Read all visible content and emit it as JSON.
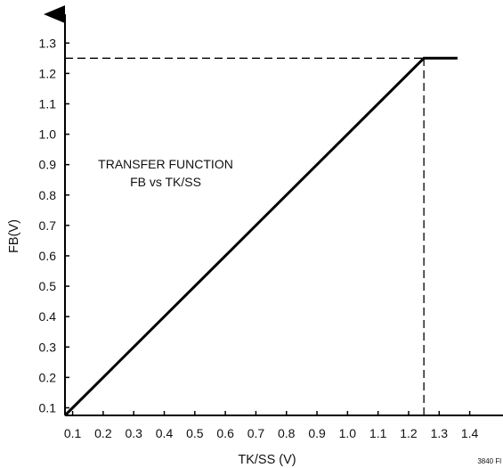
{
  "chart_data": {
    "type": "line",
    "title": "",
    "annotation": [
      "TRANSFER FUNCTION",
      "FB vs TK/SS"
    ],
    "xlabel": "TK/SS (V)",
    "ylabel": "FB(V)",
    "xlim": [
      0.075,
      1.45
    ],
    "ylim": [
      0.075,
      1.35
    ],
    "x_ticks": [
      "0.1",
      "0.2",
      "0.3",
      "0.4",
      "0.5",
      "0.6",
      "0.7",
      "0.8",
      "0.9",
      "1.0",
      "1.1",
      "1.2",
      "1.3",
      "1.4"
    ],
    "y_ticks": [
      "0.1",
      "0.2",
      "0.3",
      "0.4",
      "0.5",
      "0.6",
      "0.7",
      "0.8",
      "0.9",
      "1.0",
      "1.1",
      "1.2",
      "1.3"
    ],
    "grid": false,
    "series": [
      {
        "x": [
          0.075,
          1.25,
          1.36
        ],
        "y": [
          0.075,
          1.25,
          1.25
        ],
        "style": "solid"
      }
    ],
    "reference_lines": [
      {
        "type": "horizontal",
        "y": 1.25,
        "x_from": 0.075,
        "x_to": 1.25,
        "style": "dashed"
      },
      {
        "type": "vertical",
        "x": 1.25,
        "y_from": 0.075,
        "y_to": 1.25,
        "style": "dashed"
      }
    ],
    "figure_id": "3840 Fl",
    "line_color": "#000000"
  }
}
